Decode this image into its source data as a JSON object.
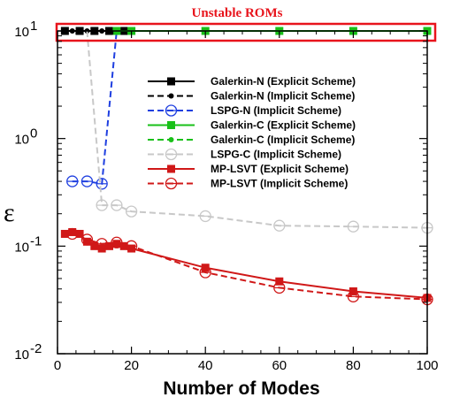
{
  "chart_data": {
    "type": "line",
    "title": "",
    "xlabel": "Number of Modes",
    "ylabel": "ε",
    "xlim": [
      0,
      100
    ],
    "ylim": [
      0.01,
      10
    ],
    "yscale": "log",
    "grid": false,
    "legend_position": "center-right",
    "x_ticks": [
      "0",
      "20",
      "40",
      "60",
      "80",
      "100"
    ],
    "y_ticks": [
      {
        "value": 0.01,
        "base": "10",
        "exp": "-2"
      },
      {
        "value": 0.1,
        "base": "10",
        "exp": "-1"
      },
      {
        "value": 1,
        "base": "10",
        "exp": "0"
      },
      {
        "value": 10,
        "base": "10",
        "exp": "1"
      }
    ],
    "annotation": "Unstable ROMs",
    "colors": {
      "black": "#000000",
      "blue": "#1f3fe0",
      "green": "#19c019",
      "gray": "#c8c8c8",
      "red": "#d01818",
      "annotation_box": "#e8141c"
    },
    "series": [
      {
        "name": "Galerkin-N (Explicit Scheme)",
        "color": "#000000",
        "dash": "solid",
        "marker": "square",
        "x": [
          2,
          4,
          6,
          8,
          10,
          12,
          14,
          16,
          18,
          20,
          40,
          60,
          80,
          100
        ],
        "y": [
          10,
          10,
          10,
          10,
          10,
          10,
          10,
          10,
          10,
          10,
          10,
          10,
          10,
          10
        ],
        "marker_x": [
          2,
          6,
          10,
          14,
          18
        ]
      },
      {
        "name": "Galerkin-N (Implicit Scheme)",
        "color": "#000000",
        "dash": "dashed",
        "marker": "circle",
        "x": [
          2,
          4,
          6,
          8,
          10,
          12,
          14,
          16,
          18,
          20,
          40,
          60,
          80,
          100
        ],
        "y": [
          10,
          10,
          10,
          10,
          10,
          10,
          10,
          10,
          10,
          10,
          10,
          10,
          10,
          10
        ],
        "marker_x": [
          4,
          8,
          12,
          16
        ]
      },
      {
        "name": "LSPG-N (Implicit Scheme)",
        "color": "#1f3fe0",
        "dash": "dashed",
        "marker": "open-circle",
        "x": [
          4,
          8,
          12,
          16
        ],
        "y": [
          0.4,
          0.4,
          0.38,
          10
        ],
        "marker_x": [
          4,
          8,
          12
        ]
      },
      {
        "name": "Galerkin-C (Explicit Scheme)",
        "color": "#19c019",
        "dash": "solid",
        "marker": "square",
        "x": [
          16,
          20,
          40,
          60,
          80,
          100
        ],
        "y": [
          10,
          10,
          10,
          10,
          10,
          10
        ],
        "marker_x": [
          16,
          20,
          40,
          60,
          80,
          100
        ]
      },
      {
        "name": "Galerkin-C (Implicit Scheme)",
        "color": "#19c019",
        "dash": "dashed",
        "marker": "circle",
        "x": [
          20,
          40,
          60,
          80,
          100
        ],
        "y": [
          10,
          10,
          10,
          10,
          10
        ],
        "marker_x": [
          20,
          40,
          60,
          80,
          100
        ]
      },
      {
        "name": "LSPG-C (Implicit Scheme)",
        "color": "#c8c8c8",
        "dash": "dashed",
        "marker": "open-circle",
        "x": [
          8,
          12,
          16,
          20,
          40,
          60,
          80,
          100
        ],
        "y": [
          10,
          0.24,
          0.24,
          0.21,
          0.19,
          0.155,
          0.152,
          0.148
        ],
        "marker_x": [
          12,
          16,
          20,
          40,
          60,
          80,
          100
        ]
      },
      {
        "name": "MP-LSVT (Explicit Scheme)",
        "color": "#d01818",
        "dash": "solid",
        "marker": "square",
        "x": [
          2,
          4,
          6,
          8,
          10,
          12,
          14,
          16,
          18,
          20,
          40,
          60,
          80,
          100
        ],
        "y": [
          0.13,
          0.135,
          0.13,
          0.11,
          0.1,
          0.095,
          0.1,
          0.105,
          0.1,
          0.095,
          0.063,
          0.047,
          0.038,
          0.033
        ],
        "marker_x": [
          2,
          4,
          6,
          8,
          10,
          12,
          14,
          16,
          18,
          20,
          40,
          60,
          80,
          100
        ]
      },
      {
        "name": "MP-LSVT (Implicit Scheme)",
        "color": "#d01818",
        "dash": "dashed",
        "marker": "open-circle",
        "x": [
          4,
          8,
          12,
          16,
          20,
          40,
          60,
          80,
          100
        ],
        "y": [
          0.13,
          0.115,
          0.105,
          0.108,
          0.1,
          0.057,
          0.041,
          0.034,
          0.032
        ],
        "marker_x": [
          4,
          8,
          12,
          16,
          20,
          40,
          60,
          80,
          100
        ]
      }
    ]
  }
}
